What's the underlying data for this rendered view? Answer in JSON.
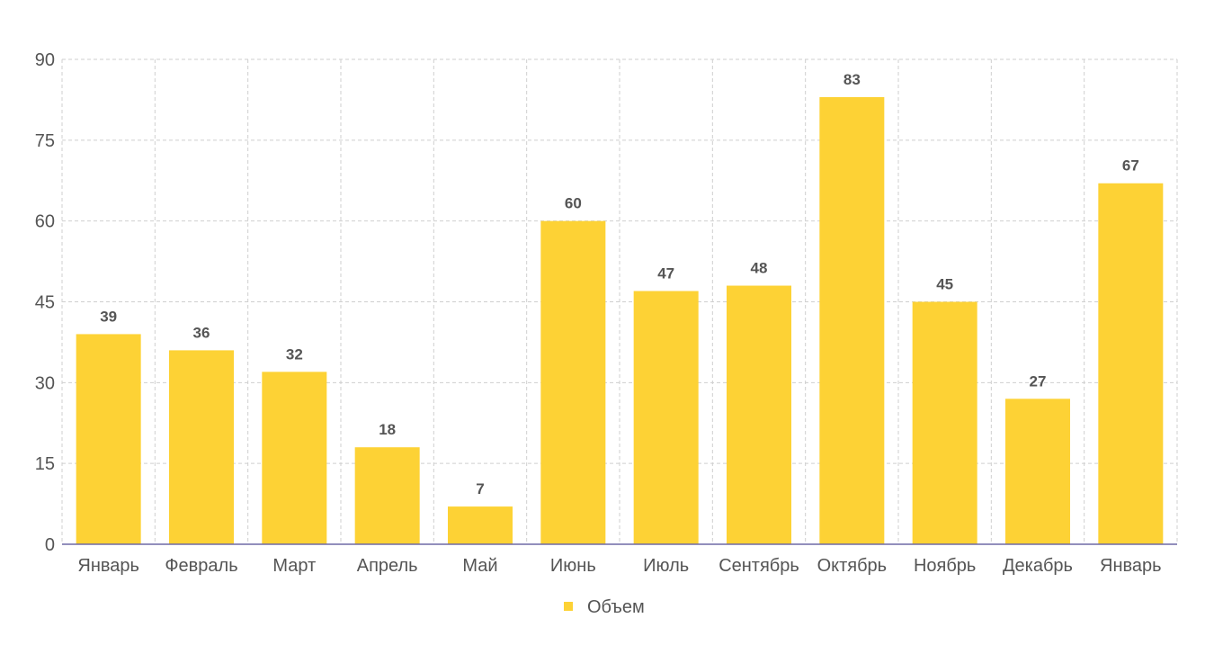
{
  "chart_data": {
    "type": "bar",
    "categories": [
      "Январь",
      "Февраль",
      "Март",
      "Апрель",
      "Май",
      "Июнь",
      "Июль",
      "Сентябрь",
      "Октябрь",
      "Ноябрь",
      "Декабрь",
      "Январь"
    ],
    "series": [
      {
        "name": "Объем",
        "values": [
          39,
          36,
          32,
          18,
          7,
          60,
          47,
          48,
          83,
          45,
          27,
          67
        ],
        "color": "#fdd235"
      }
    ],
    "ylim": [
      0,
      90
    ],
    "yticks": [
      0,
      15,
      30,
      45,
      60,
      75,
      90
    ],
    "grid": true,
    "data_labels": true,
    "legend_position": "bottom-center"
  }
}
